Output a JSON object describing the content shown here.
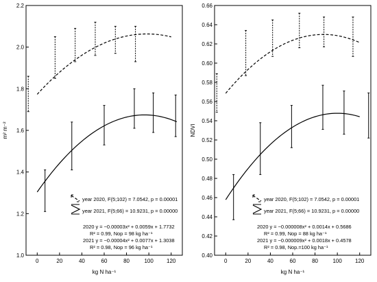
{
  "chart_data": [
    {
      "type": "line",
      "ylabel": "m² m⁻²",
      "xlabel": "kg N ha⁻¹",
      "xlim": [
        -10,
        130
      ],
      "ylim": [
        1.0,
        2.2
      ],
      "xticks": [
        0,
        20,
        40,
        60,
        80,
        100,
        120
      ],
      "yticks": [
        1.0,
        1.2,
        1.4,
        1.6,
        1.8,
        2.0,
        2.2
      ],
      "ytick_decimals": 1,
      "series": [
        {
          "name": "year 2020, F(5;102) = 7.0542, p = 0.00001",
          "style": "dashed",
          "fit": {
            "a": -3e-05,
            "b": 0.0059,
            "c": 1.7732,
            "xmin": 0,
            "xmax": 120
          },
          "errorbars": [
            {
              "x": -8,
              "low": 1.69,
              "high": 1.86
            },
            {
              "x": 16,
              "low": 1.85,
              "high": 2.05
            },
            {
              "x": 34,
              "low": 1.93,
              "high": 2.09
            },
            {
              "x": 52,
              "low": 1.96,
              "high": 2.12
            },
            {
              "x": 70,
              "low": 1.97,
              "high": 2.1
            },
            {
              "x": 88,
              "low": 1.93,
              "high": 2.1
            }
          ]
        },
        {
          "name": "year 2021, F(5;66) = 10.9231, p = 0.00000",
          "style": "solid",
          "fit": {
            "a": -4e-05,
            "b": 0.0077,
            "c": 1.3038,
            "xmin": 0,
            "xmax": 125
          },
          "errorbars": [
            {
              "x": 7,
              "low": 1.21,
              "high": 1.41
            },
            {
              "x": 31,
              "low": 1.41,
              "high": 1.64
            },
            {
              "x": 60,
              "low": 1.53,
              "high": 1.72
            },
            {
              "x": 87,
              "low": 1.61,
              "high": 1.8
            },
            {
              "x": 104,
              "low": 1.59,
              "high": 1.78
            },
            {
              "x": 124,
              "low": 1.57,
              "high": 1.77
            }
          ]
        }
      ],
      "equations": [
        "2020 y = −0.00003x² + 0.0059x + 1.7732",
        "R² = 0.99,  Nop = 98 kg ha⁻¹",
        "2021 y = −0.00004x² + 0.0077x + 1.3038",
        "R² = 0.98,  Nop = 96 kg ha⁻¹"
      ]
    },
    {
      "type": "line",
      "ylabel": "NDVI",
      "xlabel": "kg N ha⁻¹",
      "xlim": [
        -10,
        130
      ],
      "ylim": [
        0.4,
        0.66
      ],
      "xticks": [
        0,
        20,
        40,
        60,
        80,
        100,
        120
      ],
      "yticks": [
        0.4,
        0.42,
        0.44,
        0.46,
        0.48,
        0.5,
        0.52,
        0.54,
        0.56,
        0.58,
        0.6,
        0.62,
        0.64,
        0.66
      ],
      "ytick_decimals": 2,
      "series": [
        {
          "name": "year 2020, F(5;102) = 7.0542, p = 0.00001",
          "style": "dashed",
          "fit": {
            "a": -8e-06,
            "b": 0.0014,
            "c": 0.5686,
            "xmin": 0,
            "xmax": 120
          },
          "errorbars": [
            {
              "x": -8,
              "low": 0.549,
              "high": 0.589
            },
            {
              "x": 18,
              "low": 0.587,
              "high": 0.634
            },
            {
              "x": 42,
              "low": 0.607,
              "high": 0.645
            },
            {
              "x": 66,
              "low": 0.616,
              "high": 0.652
            },
            {
              "x": 88,
              "low": 0.617,
              "high": 0.648
            },
            {
              "x": 114,
              "low": 0.607,
              "high": 0.648
            }
          ]
        },
        {
          "name": "year 2021, F(5;66) = 10.9231, p = 0.00000",
          "style": "solid",
          "fit": {
            "a": -9e-06,
            "b": 0.0018,
            "c": 0.4578,
            "xmin": 0,
            "xmax": 120
          },
          "errorbars": [
            {
              "x": 7,
              "low": 0.437,
              "high": 0.484
            },
            {
              "x": 31,
              "low": 0.484,
              "high": 0.538
            },
            {
              "x": 59,
              "low": 0.512,
              "high": 0.556
            },
            {
              "x": 87,
              "low": 0.531,
              "high": 0.577
            },
            {
              "x": 106,
              "low": 0.526,
              "high": 0.571
            },
            {
              "x": 128,
              "low": 0.522,
              "high": 0.569
            }
          ]
        }
      ],
      "equations": [
        "2020 y = −0.000008x² + 0.0014x + 0.5686",
        "R² = 0.99,  Nop = 88 kg ha⁻¹",
        "2021 y = −0.000009x² + 0.0018x + 0.4578",
        "R² = 0.98, Nop.=100 kg ha⁻¹"
      ]
    }
  ]
}
